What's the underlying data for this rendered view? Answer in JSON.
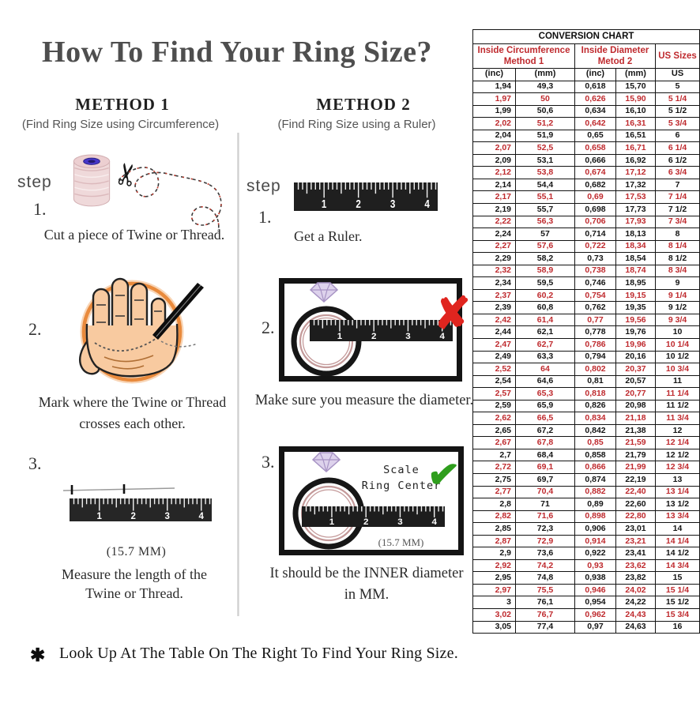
{
  "title": "How To Find Your Ring Size?",
  "icons": {
    "scissors": "✂",
    "wrong_x": "✘",
    "check": "✔",
    "asterisk": "✱"
  },
  "ruler_numbers": [
    "1",
    "2",
    "3",
    "4"
  ],
  "method1": {
    "heading": "METHOD 1",
    "subheading": "(Find Ring Size using Circumference)",
    "step_label": "step",
    "step1_num": "1.",
    "step1_text": "Cut a piece of  Twine or Thread.",
    "step2_num": "2.",
    "step2_line1": "Mark where the Twine or Thread",
    "step2_line2": "crosses each other.",
    "step3_num": "3.",
    "step3_measure": "(15.7 MM)",
    "step3_line1": "Measure the length of the",
    "step3_line2": "Twine or Thread."
  },
  "method2": {
    "heading": "METHOD 2",
    "subheading": "(Find Ring Size using a Ruler)",
    "step_label": "step",
    "step1_num": "1.",
    "step1_text": "Get a Ruler.",
    "step2_num": "2.",
    "step2_text": "Make sure you measure the diameter.",
    "step3_num": "3.",
    "scale_line1": "Scale",
    "scale_line2": "Ring Center",
    "step3_measure": "(15.7 MM)",
    "step3_line1": "It should be the INNER diameter",
    "step3_line2": "in MM."
  },
  "footer": {
    "note": "Look Up At The Table On The Right To Find Your Ring Size."
  },
  "conversion_chart": {
    "title": "CONVERSION CHART",
    "group_headers": [
      {
        "line1": "Inside Circumference",
        "line2": "Method 1"
      },
      {
        "line1": "Inside Diameter",
        "line2": "Metod 2"
      },
      {
        "line1": "US Sizes",
        "line2": ""
      }
    ],
    "column_headers": [
      "(inc)",
      "(mm)",
      "(inc)",
      "(mm)",
      "US"
    ],
    "rows": [
      [
        "1,94",
        "49,3",
        "0,618",
        "15,70",
        "5"
      ],
      [
        "1,97",
        "50",
        "0,626",
        "15,90",
        "5 1/4"
      ],
      [
        "1,99",
        "50,6",
        "0,634",
        "16,10",
        "5 1/2"
      ],
      [
        "2,02",
        "51,2",
        "0,642",
        "16,31",
        "5 3/4"
      ],
      [
        "2,04",
        "51,9",
        "0,65",
        "16,51",
        "6"
      ],
      [
        "2,07",
        "52,5",
        "0,658",
        "16,71",
        "6 1/4"
      ],
      [
        "2,09",
        "53,1",
        "0,666",
        "16,92",
        "6 1/2"
      ],
      [
        "2,12",
        "53,8",
        "0,674",
        "17,12",
        "6 3/4"
      ],
      [
        "2,14",
        "54,4",
        "0,682",
        "17,32",
        "7"
      ],
      [
        "2,17",
        "55,1",
        "0,69",
        "17,53",
        "7 1/4"
      ],
      [
        "2,19",
        "55,7",
        "0,698",
        "17,73",
        "7 1/2"
      ],
      [
        "2,22",
        "56,3",
        "0,706",
        "17,93",
        "7 3/4"
      ],
      [
        "2,24",
        "57",
        "0,714",
        "18,13",
        "8"
      ],
      [
        "2,27",
        "57,6",
        "0,722",
        "18,34",
        "8 1/4"
      ],
      [
        "2,29",
        "58,2",
        "0,73",
        "18,54",
        "8 1/2"
      ],
      [
        "2,32",
        "58,9",
        "0,738",
        "18,74",
        "8 3/4"
      ],
      [
        "2,34",
        "59,5",
        "0,746",
        "18,95",
        "9"
      ],
      [
        "2,37",
        "60,2",
        "0,754",
        "19,15",
        "9 1/4"
      ],
      [
        "2,39",
        "60,8",
        "0,762",
        "19,35",
        "9 1/2"
      ],
      [
        "2,42",
        "61,4",
        "0,77",
        "19,56",
        "9 3/4"
      ],
      [
        "2,44",
        "62,1",
        "0,778",
        "19,76",
        "10"
      ],
      [
        "2,47",
        "62,7",
        "0,786",
        "19,96",
        "10 1/4"
      ],
      [
        "2,49",
        "63,3",
        "0,794",
        "20,16",
        "10 1/2"
      ],
      [
        "2,52",
        "64",
        "0,802",
        "20,37",
        "10 3/4"
      ],
      [
        "2,54",
        "64,6",
        "0,81",
        "20,57",
        "11"
      ],
      [
        "2,57",
        "65,3",
        "0,818",
        "20,77",
        "11 1/4"
      ],
      [
        "2,59",
        "65,9",
        "0,826",
        "20,98",
        "11 1/2"
      ],
      [
        "2,62",
        "66,5",
        "0,834",
        "21,18",
        "11 3/4"
      ],
      [
        "2,65",
        "67,2",
        "0,842",
        "21,38",
        "12"
      ],
      [
        "2,67",
        "67,8",
        "0,85",
        "21,59",
        "12 1/4"
      ],
      [
        "2,7",
        "68,4",
        "0,858",
        "21,79",
        "12 1/2"
      ],
      [
        "2,72",
        "69,1",
        "0,866",
        "21,99",
        "12 3/4"
      ],
      [
        "2,75",
        "69,7",
        "0,874",
        "22,19",
        "13"
      ],
      [
        "2,77",
        "70,4",
        "0,882",
        "22,40",
        "13 1/4"
      ],
      [
        "2,8",
        "71",
        "0,89",
        "22,60",
        "13 1/2"
      ],
      [
        "2,82",
        "71,6",
        "0,898",
        "22,80",
        "13 3/4"
      ],
      [
        "2,85",
        "72,3",
        "0,906",
        "23,01",
        "14"
      ],
      [
        "2,87",
        "72,9",
        "0,914",
        "23,21",
        "14 1/4"
      ],
      [
        "2,9",
        "73,6",
        "0,922",
        "23,41",
        "14 1/2"
      ],
      [
        "2,92",
        "74,2",
        "0,93",
        "23,62",
        "14 3/4"
      ],
      [
        "2,95",
        "74,8",
        "0,938",
        "23,82",
        "15"
      ],
      [
        "2,97",
        "75,5",
        "0,946",
        "24,02",
        "15 1/4"
      ],
      [
        "3",
        "76,1",
        "0,954",
        "24,22",
        "15 1/2"
      ],
      [
        "3,02",
        "76,7",
        "0,962",
        "24,43",
        "15 3/4"
      ],
      [
        "3,05",
        "77,4",
        "0,97",
        "24,63",
        "16"
      ]
    ],
    "colors": {
      "accent_red": "#bf2a2e",
      "text_black": "#141414"
    }
  }
}
